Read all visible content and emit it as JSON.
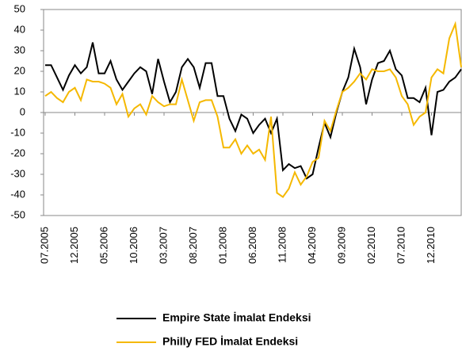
{
  "chart_data": {
    "type": "line",
    "categories": [
      "07.2005",
      null,
      null,
      null,
      null,
      "12.2005",
      null,
      null,
      null,
      null,
      "05.2006",
      null,
      null,
      null,
      null,
      "10.2006",
      null,
      null,
      null,
      null,
      "03.2007",
      null,
      null,
      null,
      null,
      "08.2007",
      null,
      null,
      null,
      null,
      "01.2008",
      null,
      null,
      null,
      null,
      "06.2008",
      null,
      null,
      null,
      null,
      "11.2008",
      null,
      null,
      null,
      null,
      "04.2009",
      null,
      null,
      null,
      null,
      "09.2009",
      null,
      null,
      null,
      null,
      "02.2010",
      null,
      null,
      null,
      null,
      "07.2010",
      null,
      null,
      null,
      null,
      "12.2010",
      null,
      null,
      null,
      null,
      null
    ],
    "series": [
      {
        "name": "Empire State İmalat Endeksi",
        "color": "#000000",
        "values": [
          23,
          23,
          17,
          11,
          18,
          23,
          19,
          22,
          34,
          19,
          19,
          25,
          16,
          11,
          15,
          19,
          22,
          20,
          9,
          26,
          15,
          5,
          10,
          22,
          26,
          22,
          12,
          24,
          24,
          8,
          8,
          -3,
          -9,
          -1,
          -3,
          -10,
          -6,
          -3,
          -10,
          -3,
          -28,
          -25,
          -27,
          -26,
          -32,
          -30,
          -17,
          -5,
          -12,
          0,
          10,
          17,
          31,
          22,
          4,
          16,
          24,
          25,
          30,
          21,
          18,
          7,
          7,
          5,
          12,
          -11,
          10,
          11,
          15,
          17,
          21
        ]
      },
      {
        "name": "Philly FED İmalat Endeksi",
        "color": "#f5b800",
        "values": [
          8,
          10,
          7,
          5,
          10,
          12,
          6,
          16,
          15,
          15,
          14,
          12,
          4,
          9,
          -2,
          2,
          4,
          -1,
          8,
          5,
          3,
          4,
          4,
          16,
          6,
          -4,
          5,
          6,
          6,
          -2,
          -17,
          -17,
          -13,
          -20,
          -16,
          -20,
          -18,
          -23,
          -2,
          -39,
          -41,
          -37,
          -29,
          -35,
          -31,
          -24,
          -22,
          -4,
          -9,
          1,
          10,
          12,
          15,
          19,
          16,
          21,
          20,
          20,
          21,
          17,
          8,
          4,
          -6,
          -2,
          0,
          17,
          21,
          19,
          36,
          43,
          22
        ]
      }
    ],
    "ylim": [
      -50,
      50
    ],
    "yticks": [
      -50,
      -40,
      -30,
      -20,
      -10,
      0,
      10,
      20,
      30,
      40,
      50
    ],
    "grid": false
  }
}
